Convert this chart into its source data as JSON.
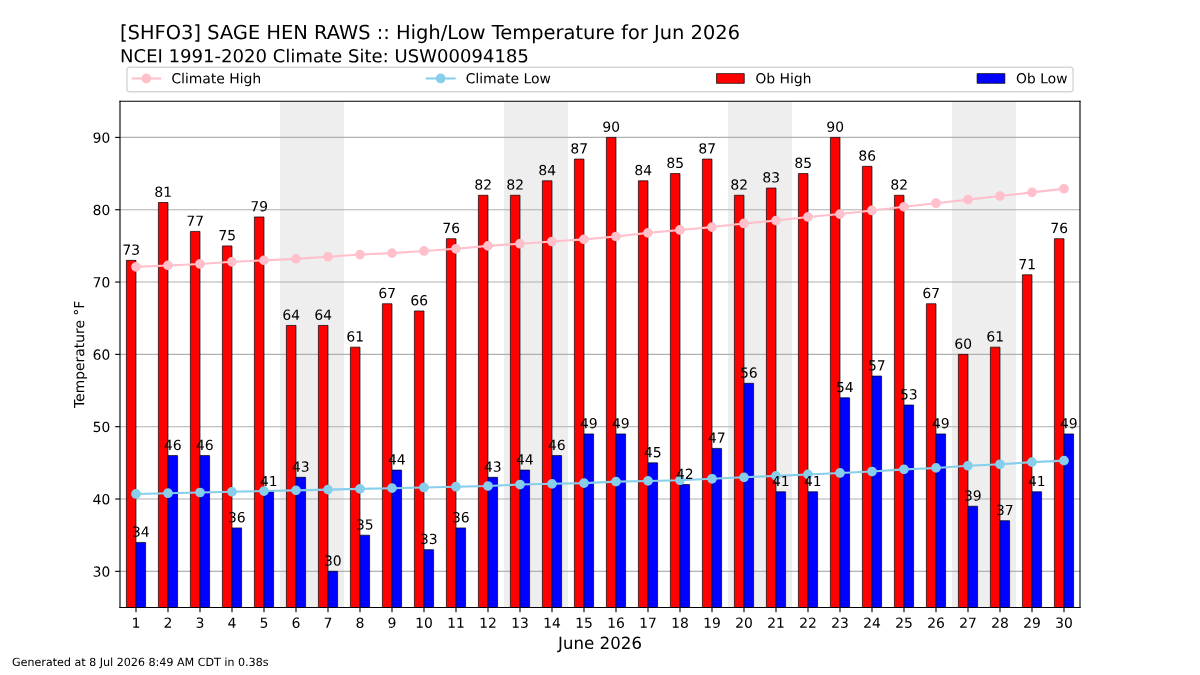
{
  "chart_data": {
    "type": "bar",
    "title": "[SHFO3] SAGE HEN RAWS :: High/Low Temperature for Jun 2026",
    "subtitle": "NCEI 1991-2020 Climate Site: USW00094185",
    "xlabel": "June 2026",
    "ylabel": "Temperature °F",
    "x": [
      1,
      2,
      3,
      4,
      5,
      6,
      7,
      8,
      9,
      10,
      11,
      12,
      13,
      14,
      15,
      16,
      17,
      18,
      19,
      20,
      21,
      22,
      23,
      24,
      25,
      26,
      27,
      28,
      29,
      30
    ],
    "xlim": [
      0.5,
      30.5
    ],
    "xticks": [
      1,
      2,
      3,
      4,
      5,
      6,
      7,
      8,
      9,
      10,
      11,
      12,
      13,
      14,
      15,
      16,
      17,
      18,
      19,
      20,
      21,
      22,
      23,
      24,
      25,
      26,
      27,
      28,
      29,
      30
    ],
    "ylim": [
      25,
      95
    ],
    "yticks": [
      30,
      40,
      50,
      60,
      70,
      80,
      90
    ],
    "grid": "y",
    "legend": "top",
    "marker": "circle",
    "series": [
      {
        "name": "Climate High",
        "type": "line",
        "color": "#ffc0cb",
        "values": [
          72.1,
          72.3,
          72.5,
          72.8,
          73.0,
          73.2,
          73.5,
          73.8,
          74.0,
          74.3,
          74.6,
          75.0,
          75.3,
          75.6,
          75.9,
          76.3,
          76.8,
          77.2,
          77.6,
          78.1,
          78.5,
          79.0,
          79.4,
          79.9,
          80.4,
          80.9,
          81.4,
          81.9,
          82.4,
          82.9
        ]
      },
      {
        "name": "Climate Low",
        "type": "line",
        "color": "#87ceeb",
        "values": [
          40.7,
          40.8,
          40.9,
          41.0,
          41.1,
          41.2,
          41.3,
          41.4,
          41.5,
          41.6,
          41.7,
          41.8,
          42.0,
          42.1,
          42.2,
          42.4,
          42.5,
          42.6,
          42.8,
          43.0,
          43.2,
          43.4,
          43.6,
          43.8,
          44.1,
          44.3,
          44.6,
          44.8,
          45.1,
          45.3
        ]
      },
      {
        "name": "Ob High",
        "color": "#ff0000",
        "data_labels": true,
        "values": [
          73,
          81,
          77,
          75,
          79,
          64,
          64,
          61,
          67,
          66,
          76,
          82,
          82,
          84,
          87,
          90,
          84,
          85,
          87,
          82,
          83,
          85,
          90,
          86,
          82,
          67,
          60,
          61,
          71,
          76
        ]
      },
      {
        "name": "Ob Low",
        "color": "#0000ff",
        "data_labels": true,
        "values": [
          34,
          46,
          46,
          36,
          41,
          43,
          30,
          35,
          44,
          33,
          36,
          43,
          44,
          46,
          49,
          49,
          45,
          42,
          47,
          56,
          41,
          41,
          54,
          57,
          53,
          49,
          39,
          37,
          41,
          49
        ]
      }
    ],
    "bands": [
      {
        "axis": "x",
        "from": 5.5,
        "to": 7.5,
        "color": "#eeeeee"
      },
      {
        "axis": "x",
        "from": 12.5,
        "to": 14.5,
        "color": "#eeeeee"
      },
      {
        "axis": "x",
        "from": 19.5,
        "to": 21.5,
        "color": "#eeeeee"
      },
      {
        "axis": "x",
        "from": 26.5,
        "to": 28.5,
        "color": "#eeeeee"
      }
    ],
    "annotations": [
      "Generated at 8 Jul 2026 8:49 AM CDT in 0.38s"
    ]
  }
}
